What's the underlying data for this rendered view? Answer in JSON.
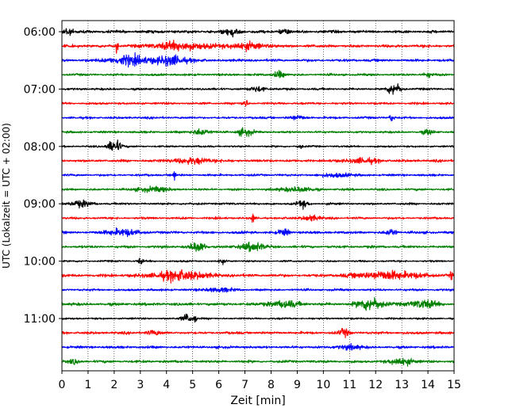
{
  "chart_data": {
    "type": "line",
    "title": "",
    "xlabel": "Zeit  [min]",
    "ylabel": "UTC (Lokalzeit = UTC + 02:00)",
    "xlim": [
      0,
      15
    ],
    "x_ticks": [
      "0",
      "1",
      "2",
      "3",
      "4",
      "5",
      "6",
      "7",
      "8",
      "9",
      "10",
      "11",
      "12",
      "13",
      "14",
      "15"
    ],
    "y_tick_labels": [
      {
        "label": "06:00",
        "trace": 0
      },
      {
        "label": "07:00",
        "trace": 4
      },
      {
        "label": "08:00",
        "trace": 8
      },
      {
        "label": "09:00",
        "trace": 12
      },
      {
        "label": "10:00",
        "trace": 16
      },
      {
        "label": "11:00",
        "trace": 20
      }
    ],
    "grid": "vertical-dotted",
    "trace_interval_minutes": 15,
    "colors": [
      "#000000",
      "#ff0000",
      "#0000ff",
      "#008000"
    ],
    "traces": [
      {
        "start": "06:00",
        "color": "#000000",
        "amp": 0.18,
        "events": [
          {
            "t": 0.2,
            "a": 0.5,
            "w": 0.2
          },
          {
            "t": 6.5,
            "a": 0.55,
            "w": 0.3
          },
          {
            "t": 8.5,
            "a": 0.35,
            "w": 0.2
          }
        ]
      },
      {
        "start": "06:15",
        "color": "#ff0000",
        "amp": 0.18,
        "events": [
          {
            "t": 2.1,
            "a": 1.1,
            "w": 0.05
          },
          {
            "t": 4.5,
            "a": 0.6,
            "w": 1.0
          },
          {
            "t": 7.0,
            "a": 0.45,
            "w": 0.8
          }
        ]
      },
      {
        "start": "06:30",
        "color": "#0000ff",
        "amp": 0.16,
        "events": [
          {
            "t": 2.6,
            "a": 0.7,
            "w": 0.8
          },
          {
            "t": 4.2,
            "a": 0.7,
            "w": 0.6
          }
        ]
      },
      {
        "start": "06:45",
        "color": "#008000",
        "amp": 0.14,
        "events": [
          {
            "t": 8.3,
            "a": 0.55,
            "w": 0.2
          },
          {
            "t": 14.0,
            "a": 0.35,
            "w": 0.2
          }
        ]
      },
      {
        "start": "07:00",
        "color": "#000000",
        "amp": 0.14,
        "events": [
          {
            "t": 12.7,
            "a": 0.9,
            "w": 0.25
          },
          {
            "t": 7.5,
            "a": 0.35,
            "w": 0.3
          }
        ]
      },
      {
        "start": "07:15",
        "color": "#ff0000",
        "amp": 0.14,
        "events": [
          {
            "t": 7.0,
            "a": 0.6,
            "w": 0.1
          }
        ]
      },
      {
        "start": "07:30",
        "color": "#0000ff",
        "amp": 0.14,
        "events": [
          {
            "t": 12.6,
            "a": 0.5,
            "w": 0.1
          },
          {
            "t": 9.0,
            "a": 0.3,
            "w": 0.3
          }
        ]
      },
      {
        "start": "07:45",
        "color": "#008000",
        "amp": 0.14,
        "events": [
          {
            "t": 5.3,
            "a": 0.5,
            "w": 0.3
          },
          {
            "t": 7.0,
            "a": 0.55,
            "w": 0.3
          },
          {
            "t": 14.0,
            "a": 0.35,
            "w": 0.2
          }
        ]
      },
      {
        "start": "08:00",
        "color": "#000000",
        "amp": 0.12,
        "events": [
          {
            "t": 2.0,
            "a": 1.0,
            "w": 0.25
          },
          {
            "t": 9.1,
            "a": 0.3,
            "w": 0.1
          }
        ]
      },
      {
        "start": "08:15",
        "color": "#ff0000",
        "amp": 0.16,
        "events": [
          {
            "t": 5.0,
            "a": 0.4,
            "w": 0.8
          },
          {
            "t": 11.5,
            "a": 0.35,
            "w": 0.6
          }
        ]
      },
      {
        "start": "08:30",
        "color": "#0000ff",
        "amp": 0.14,
        "events": [
          {
            "t": 4.3,
            "a": 0.9,
            "w": 0.05
          },
          {
            "t": 10.5,
            "a": 0.3,
            "w": 0.5
          }
        ]
      },
      {
        "start": "08:45",
        "color": "#008000",
        "amp": 0.14,
        "events": [
          {
            "t": 3.5,
            "a": 0.35,
            "w": 0.6
          },
          {
            "t": 9.0,
            "a": 0.35,
            "w": 0.6
          }
        ]
      },
      {
        "start": "09:00",
        "color": "#000000",
        "amp": 0.14,
        "events": [
          {
            "t": 0.7,
            "a": 0.45,
            "w": 0.4
          },
          {
            "t": 9.2,
            "a": 0.5,
            "w": 0.2
          }
        ]
      },
      {
        "start": "09:15",
        "color": "#ff0000",
        "amp": 0.14,
        "events": [
          {
            "t": 7.3,
            "a": 1.1,
            "w": 0.04
          },
          {
            "t": 9.5,
            "a": 0.45,
            "w": 0.3
          }
        ]
      },
      {
        "start": "09:30",
        "color": "#0000ff",
        "amp": 0.16,
        "events": [
          {
            "t": 2.3,
            "a": 0.5,
            "w": 0.6
          },
          {
            "t": 8.5,
            "a": 0.5,
            "w": 0.2
          },
          {
            "t": 12.6,
            "a": 0.5,
            "w": 0.2
          }
        ]
      },
      {
        "start": "09:45",
        "color": "#008000",
        "amp": 0.16,
        "events": [
          {
            "t": 5.2,
            "a": 0.7,
            "w": 0.3
          },
          {
            "t": 7.3,
            "a": 0.7,
            "w": 0.4
          }
        ]
      },
      {
        "start": "10:00",
        "color": "#000000",
        "amp": 0.12,
        "events": [
          {
            "t": 3.0,
            "a": 0.4,
            "w": 0.1
          },
          {
            "t": 6.1,
            "a": 0.4,
            "w": 0.1
          }
        ]
      },
      {
        "start": "10:15",
        "color": "#ff0000",
        "amp": 0.18,
        "events": [
          {
            "t": 4.5,
            "a": 0.7,
            "w": 1.0
          },
          {
            "t": 12.5,
            "a": 0.6,
            "w": 1.2
          },
          {
            "t": 14.9,
            "a": 0.7,
            "w": 0.05
          }
        ]
      },
      {
        "start": "10:30",
        "color": "#0000ff",
        "amp": 0.14,
        "events": [
          {
            "t": 6.0,
            "a": 0.3,
            "w": 0.5
          }
        ]
      },
      {
        "start": "10:45",
        "color": "#008000",
        "amp": 0.18,
        "events": [
          {
            "t": 11.8,
            "a": 0.9,
            "w": 0.5
          },
          {
            "t": 8.5,
            "a": 0.45,
            "w": 0.6
          },
          {
            "t": 13.8,
            "a": 0.6,
            "w": 0.5
          }
        ]
      },
      {
        "start": "11:00",
        "color": "#000000",
        "amp": 0.12,
        "events": [
          {
            "t": 4.8,
            "a": 0.7,
            "w": 0.2
          },
          {
            "t": 5.1,
            "a": 0.8,
            "w": 0.05
          }
        ]
      },
      {
        "start": "11:15",
        "color": "#ff0000",
        "amp": 0.16,
        "events": [
          {
            "t": 10.8,
            "a": 0.5,
            "w": 0.2
          },
          {
            "t": 3.5,
            "a": 0.3,
            "w": 0.3
          }
        ]
      },
      {
        "start": "11:30",
        "color": "#0000ff",
        "amp": 0.16,
        "events": [
          {
            "t": 11.0,
            "a": 0.35,
            "w": 0.4
          }
        ]
      },
      {
        "start": "11:45",
        "color": "#008000",
        "amp": 0.16,
        "events": [
          {
            "t": 13.0,
            "a": 0.6,
            "w": 0.4
          },
          {
            "t": 0.5,
            "a": 0.3,
            "w": 0.2
          }
        ]
      }
    ]
  }
}
